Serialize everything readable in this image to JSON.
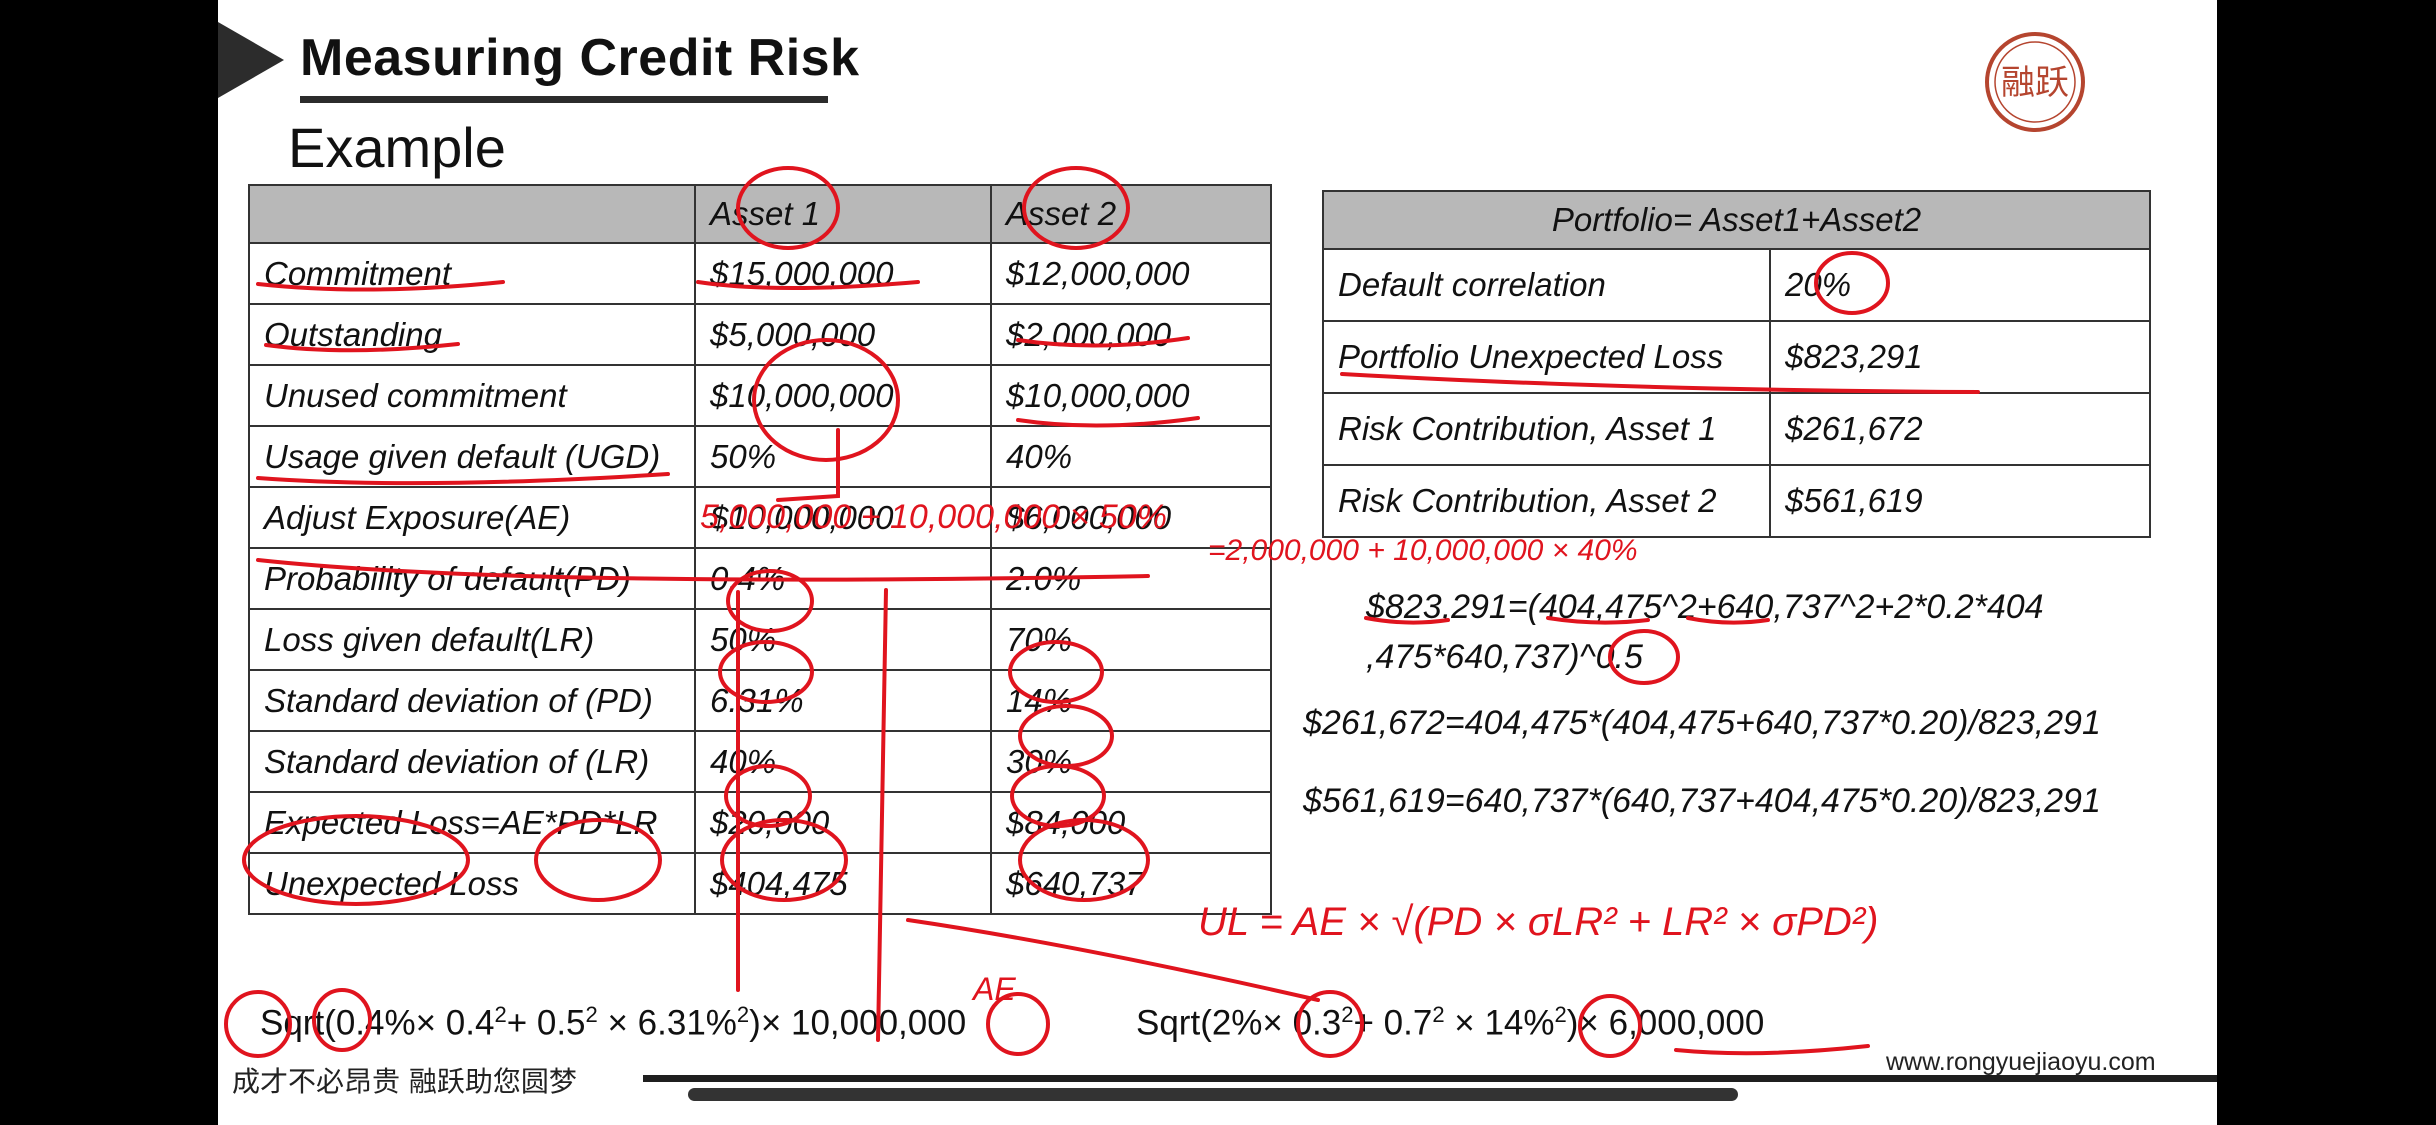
{
  "slide": {
    "title": "Measuring Credit Risk",
    "subtitle": "Example",
    "logo_text": "融跃",
    "motto": "成才不必昂贵 融跃助您圆梦",
    "url": "www.rongyuejiaoyu.com"
  },
  "asset_table": {
    "headers": [
      "",
      "Asset 1",
      "Asset 2"
    ],
    "rows": [
      {
        "label": "Commitment",
        "a1": "$15,000,000",
        "a2": "$12,000,000"
      },
      {
        "label": "Outstanding",
        "a1": "$5,000,000",
        "a2": "$2,000,000"
      },
      {
        "label": "Unused commitment",
        "a1": "$10,000,000",
        "a2": "$10,000,000"
      },
      {
        "label": "Usage given default (UGD)",
        "a1": "50%",
        "a2": "40%"
      },
      {
        "label": "Adjust Exposure(AE)",
        "a1": "$10,000,000",
        "a2": "$6,000,000"
      },
      {
        "label": "Probability of default(PD)",
        "a1": "0.4%",
        "a2": "2.0%"
      },
      {
        "label": "Loss given default(LR)",
        "a1": "50%",
        "a2": "70%"
      },
      {
        "label": "Standard deviation of (PD)",
        "a1": "6.31%",
        "a2": "14%"
      },
      {
        "label": "Standard deviation of (LR)",
        "a1": "40%",
        "a2": "30%"
      },
      {
        "label": "Expected Loss=AE*PD*LR",
        "a1": "$20,000",
        "a2": "$84,000"
      },
      {
        "label": "Unexpected Loss",
        "a1": "$404,475",
        "a2": "$640,737"
      }
    ]
  },
  "portfolio_table": {
    "header": "Portfolio= Asset1+Asset2",
    "rows": [
      {
        "label": "Default correlation",
        "value": "20%"
      },
      {
        "label": "Portfolio Unexpected Loss",
        "value": "$823,291"
      },
      {
        "label": "Risk Contribution, Asset 1",
        "value": "$261,672"
      },
      {
        "label": "Risk Contribution, Asset 2",
        "value": "$561,619"
      }
    ]
  },
  "formulas": {
    "pul_line1": "$823,291=(404,475^2+640,737^2+2*0.2*404",
    "pul_line2": ",475*640,737)^0.5",
    "rc1": "$261,672=404,475*(404,475+640,737*0.20)/823,291",
    "rc2": "$561,619=640,737*(640,737+404,475*0.20)/823,291"
  },
  "sqrt_formulas": {
    "asset1": {
      "prefix": "Sqrt(0.4%× 0.4",
      "b": "+ 0.5",
      "c": " × 6.31%",
      "d": ")× 10,000,000",
      "exp": "2"
    },
    "asset2": {
      "prefix": "Sqrt(2%× 0.3",
      "b": "+ 0.7",
      "c": " × 14%",
      "d": ")× 6,000,000",
      "exp": "2"
    }
  },
  "annotations": {
    "note_ae1": "5,000,000 + 10,000,000 × 50%",
    "note_ae2": "=2,000,000 + 10,000,000 × 40%",
    "note_ul": "UL = AE × √(PD × σLR² + LR² × σPD²)",
    "note_af": "AE",
    "ink_color": "#e0141e"
  }
}
